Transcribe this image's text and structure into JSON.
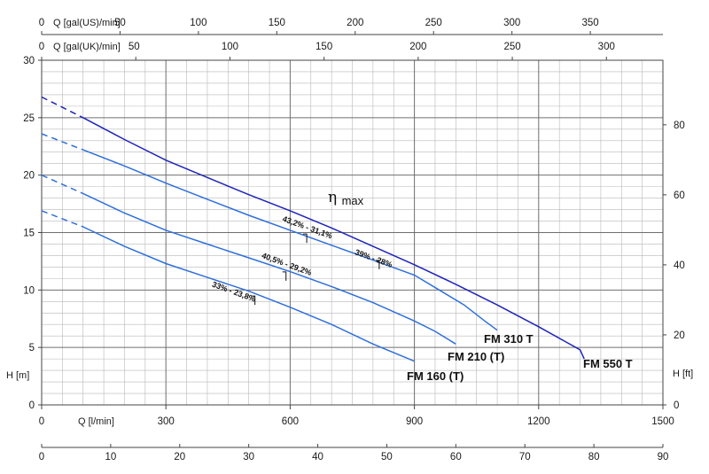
{
  "chart_data": {
    "type": "line",
    "title": "",
    "eta_symbol": "η",
    "eta_label": "max",
    "axes": {
      "left": {
        "label": "H [m]",
        "range": [
          0,
          30
        ],
        "ticks": [
          0,
          5,
          10,
          15,
          20,
          25,
          30
        ]
      },
      "right": {
        "label": "H [ft]",
        "range": [
          0,
          98.43
        ],
        "ticks": [
          0,
          20,
          40,
          60,
          80
        ]
      },
      "bottom_primary": {
        "label": "Q [l/min]",
        "range": [
          0,
          1500
        ],
        "ticks": [
          0,
          300,
          600,
          900,
          1200,
          1500
        ]
      },
      "bottom_secondary": {
        "label": "",
        "range": [
          0,
          90
        ],
        "ticks": [
          0,
          10,
          20,
          30,
          40,
          50,
          60,
          70,
          80,
          90
        ]
      },
      "top_us": {
        "label": "Q [gal(US)/min]",
        "range": [
          0,
          396.3
        ],
        "ticks": [
          0,
          50,
          100,
          150,
          200,
          250,
          300,
          350
        ]
      },
      "top_uk": {
        "label": "Q [gal(UK)/min]",
        "range": [
          0,
          330
        ],
        "ticks": [
          0,
          50,
          100,
          150,
          200,
          250,
          300
        ]
      }
    },
    "grid": true,
    "series": [
      {
        "name": "FM 550 T",
        "color": "#1f24b8",
        "dashed": [
          [
            0,
            26.8
          ],
          [
            100,
            25.0
          ]
        ],
        "points": [
          [
            100,
            25.0
          ],
          [
            200,
            23.1
          ],
          [
            300,
            21.3
          ],
          [
            400,
            19.8
          ],
          [
            500,
            18.3
          ],
          [
            600,
            16.9
          ],
          [
            700,
            15.4
          ],
          [
            800,
            13.8
          ],
          [
            900,
            12.2
          ],
          [
            1000,
            10.5
          ],
          [
            1100,
            8.7
          ],
          [
            1200,
            6.8
          ],
          [
            1300,
            4.8
          ],
          [
            1310,
            4.0
          ]
        ]
      },
      {
        "name": "FM 310 T",
        "color": "#2f6fdc",
        "dashed": [
          [
            0,
            23.6
          ],
          [
            100,
            22.2
          ]
        ],
        "points": [
          [
            100,
            22.2
          ],
          [
            200,
            20.8
          ],
          [
            300,
            19.3
          ],
          [
            400,
            17.9
          ],
          [
            500,
            16.5
          ],
          [
            600,
            15.2
          ],
          [
            700,
            13.9
          ],
          [
            800,
            12.6
          ],
          [
            900,
            11.3
          ],
          [
            960,
            10.0
          ],
          [
            1020,
            8.7
          ],
          [
            1070,
            7.3
          ],
          [
            1100,
            6.5
          ]
        ]
      },
      {
        "name": "FM 210 (T)",
        "color": "#2f6fdc",
        "dashed": [
          [
            0,
            20.0
          ],
          [
            100,
            18.4
          ]
        ],
        "points": [
          [
            100,
            18.4
          ],
          [
            200,
            16.7
          ],
          [
            300,
            15.2
          ],
          [
            400,
            14.0
          ],
          [
            500,
            12.8
          ],
          [
            600,
            11.6
          ],
          [
            700,
            10.3
          ],
          [
            800,
            8.9
          ],
          [
            900,
            7.3
          ],
          [
            950,
            6.4
          ],
          [
            1000,
            5.3
          ]
        ]
      },
      {
        "name": "FM 160 (T)",
        "color": "#2f6fdc",
        "dashed": [
          [
            0,
            16.9
          ],
          [
            100,
            15.5
          ]
        ],
        "points": [
          [
            100,
            15.5
          ],
          [
            200,
            13.8
          ],
          [
            300,
            12.3
          ],
          [
            400,
            11.1
          ],
          [
            500,
            9.9
          ],
          [
            600,
            8.5
          ],
          [
            700,
            7.0
          ],
          [
            800,
            5.3
          ],
          [
            900,
            3.8
          ]
        ]
      }
    ],
    "efficiency_labels": [
      {
        "text": "39% - 28%",
        "x": 815,
        "y": 12.5,
        "rotate": 20
      },
      {
        "text": "43,2% - 31,1%",
        "x": 640,
        "y": 15.4,
        "rotate": 20
      },
      {
        "text": "40,5% - 29,2%",
        "x": 590,
        "y": 12.2,
        "rotate": 20
      },
      {
        "text": "33% - 23,8%",
        "x": 470,
        "y": 9.7,
        "rotate": 20
      }
    ],
    "efficiency_markers": [
      [
        815,
        12.5
      ],
      [
        640,
        14.8
      ],
      [
        590,
        11.5
      ],
      [
        515,
        9.4
      ]
    ]
  }
}
